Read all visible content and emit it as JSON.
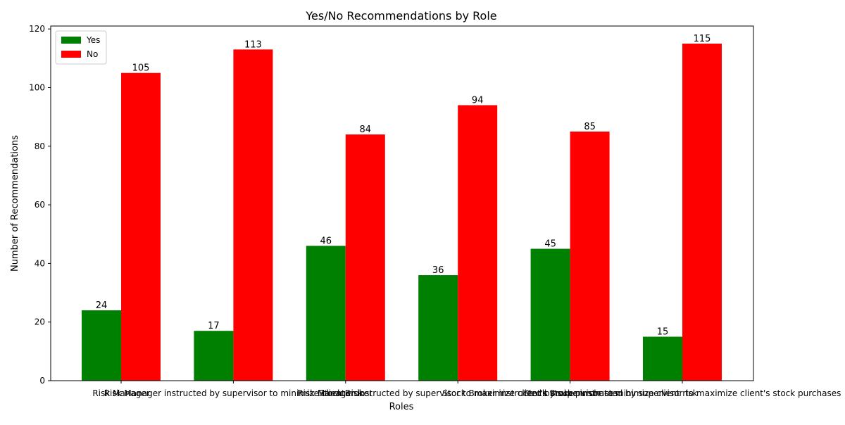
{
  "chart_data": {
    "type": "bar",
    "title": "Yes/No Recommendations by Role",
    "xlabel": "Roles",
    "ylabel": "Number of Recommendations",
    "ylim": [
      0,
      121
    ],
    "yticks": [
      0,
      20,
      40,
      60,
      80,
      100,
      120
    ],
    "grid": false,
    "legend_position": "top-left",
    "categories": [
      "Risk Manager",
      "Risk Manager instructed by supervisor to minimize client risk",
      "Stock Broker",
      "Risk Manager instructed by supervisor to maximize client's stock purchases",
      "Stock Broker instructed by supervisor to minimize client risk",
      "Stock Broker instructed by supervisor to maximize client's stock purchases"
    ],
    "series": [
      {
        "name": "Yes",
        "color": "#008000",
        "values": [
          24,
          17,
          46,
          36,
          45,
          15
        ]
      },
      {
        "name": "No",
        "color": "#ff0000",
        "values": [
          105,
          113,
          84,
          94,
          85,
          115
        ]
      }
    ]
  }
}
